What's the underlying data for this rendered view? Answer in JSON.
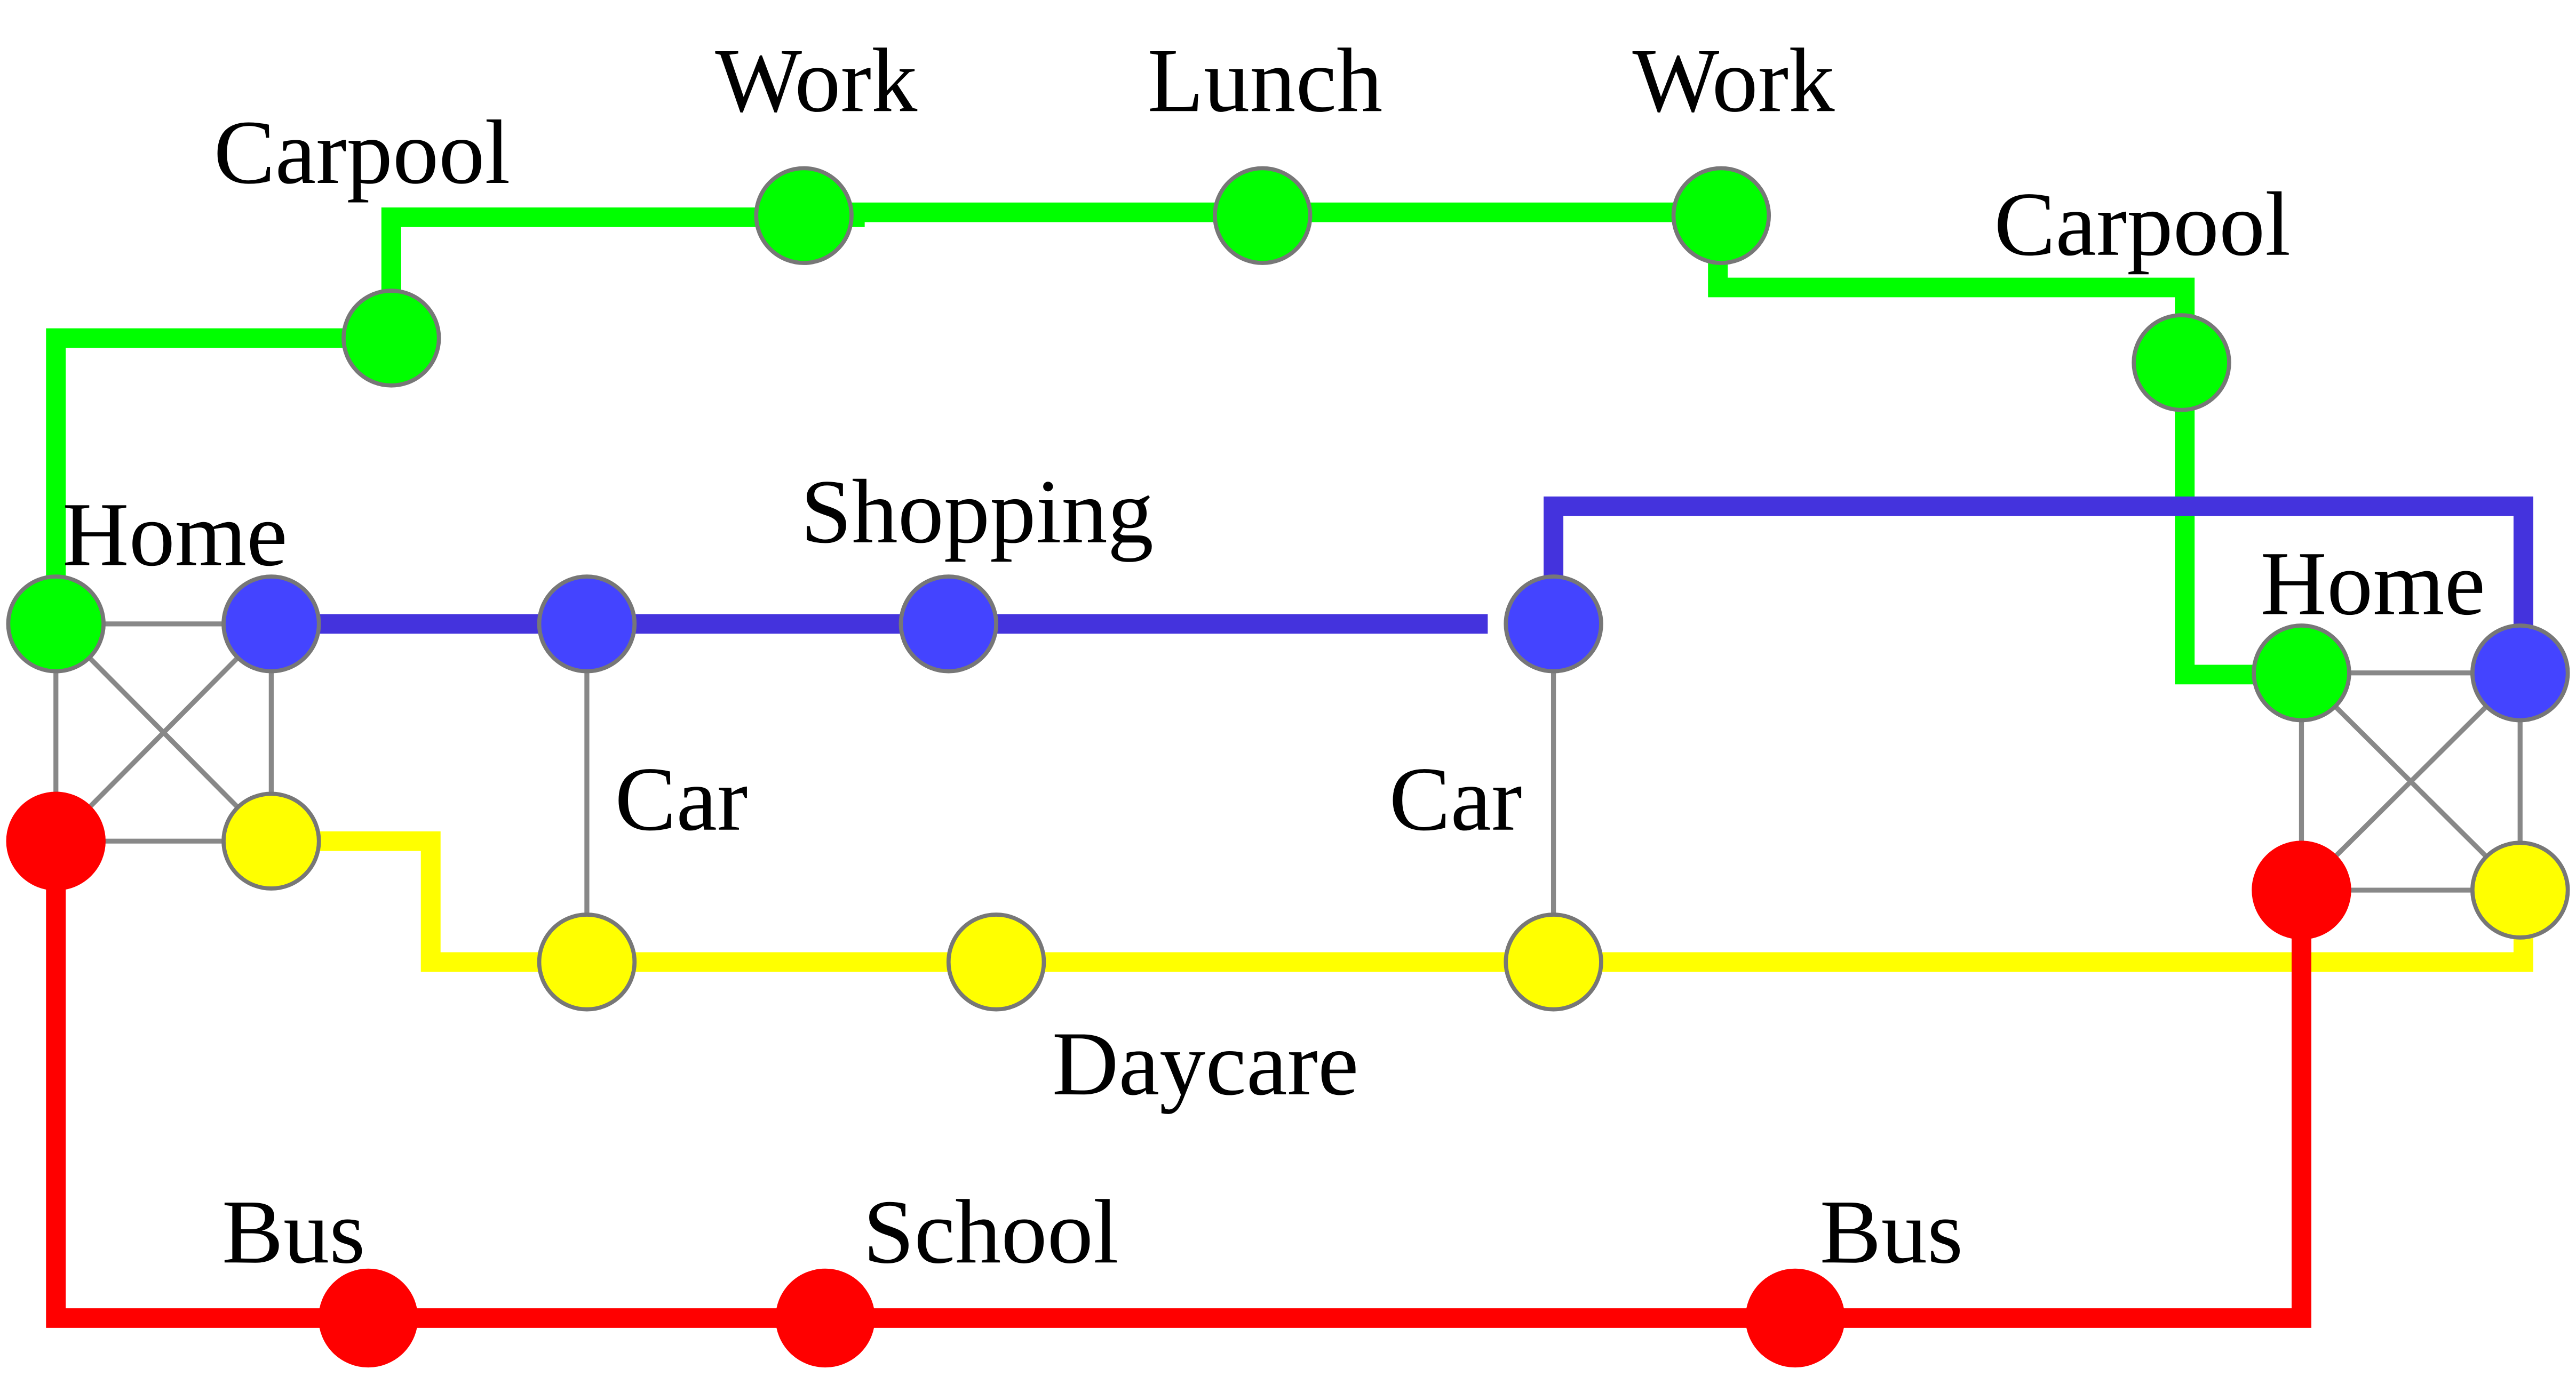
{
  "colors": {
    "green": "#00ff00",
    "blue": "#4444ff",
    "yellow": "#ffff00",
    "red": "#ff0000",
    "route_blue": "#4433dd",
    "link_gray": "#888888",
    "node_stroke": "#777777"
  },
  "labels": {
    "carpool_1": "Carpool",
    "work_1": "Work",
    "lunch": "Lunch",
    "work_2": "Work",
    "carpool_2": "Carpool",
    "home_left": "Home",
    "shopping": "Shopping",
    "home_right": "Home",
    "car_1": "Car",
    "car_2": "Car",
    "daycare": "Daycare",
    "bus_1": "Bus",
    "school": "School",
    "bus_2": "Bus"
  }
}
